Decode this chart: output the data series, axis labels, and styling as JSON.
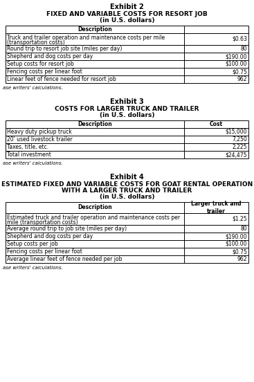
{
  "exhibit2_title1": "Exhibit 2",
  "exhibit2_title2": "FIXED AND VARIABLE COSTS FOR RESORT JOB",
  "exhibit2_title3": "(in U.S. dollars)",
  "exhibit2_headers": [
    "Description",
    ""
  ],
  "exhibit2_rows": [
    [
      "Truck and trailer operation and maintenance costs per mile\n(transportation costs)",
      "$0.63"
    ],
    [
      "Round trip to resort job site (miles per day)",
      "80"
    ],
    [
      "Shepherd and dog costs per day",
      "$190.00"
    ],
    [
      "Setup costs for resort job",
      "$100.00"
    ],
    [
      "Fencing costs per linear foot",
      "$0.75"
    ],
    [
      "Linear feet of fence needed for resort job",
      "962"
    ]
  ],
  "exhibit3_title1": "Exhibit 3",
  "exhibit3_title2": "COSTS FOR LARGER TRUCK AND TRAILER",
  "exhibit3_title3": "(in U.S. dollars)",
  "exhibit3_headers": [
    "Description",
    "Cost"
  ],
  "exhibit3_rows": [
    [
      "Heavy duty pickup truck",
      "$15,000"
    ],
    [
      "20' used livestock trailer",
      "7,250"
    ],
    [
      "Taxes, title, etc.",
      "2,225"
    ],
    [
      "Total investment",
      "$24,475"
    ]
  ],
  "exhibit4_title1": "Exhibit 4",
  "exhibit4_title2": "ESTIMATED FIXED AND VARIABLE COSTS FOR GOAT RENTAL OPERATION",
  "exhibit4_title3": "WITH A LARGER TRUCK AND TRAILER",
  "exhibit4_title4": "(in U.S. dollars)",
  "exhibit4_headers": [
    "Description",
    "Larger truck and\ntrailer"
  ],
  "exhibit4_rows": [
    [
      "Estimated truck and trailer operation and maintenance costs per\nmile (transportation costs)",
      "$1.25"
    ],
    [
      "Average round trip to job site (miles per day)",
      "80"
    ],
    [
      "Shepherd and dog costs per day",
      "$190.00"
    ],
    [
      "Setup costs per job",
      "$100.00"
    ],
    [
      "Fencing costs per linear foot",
      "$0.75"
    ],
    [
      "Average linear feet of fence needed per job",
      "962"
    ]
  ],
  "footnote": "ase writers' calculations.",
  "bg_color": "#ffffff",
  "border_color": "#000000",
  "text_color": "#000000",
  "fig_width": 3.67,
  "fig_height": 5.52,
  "dpi": 100
}
